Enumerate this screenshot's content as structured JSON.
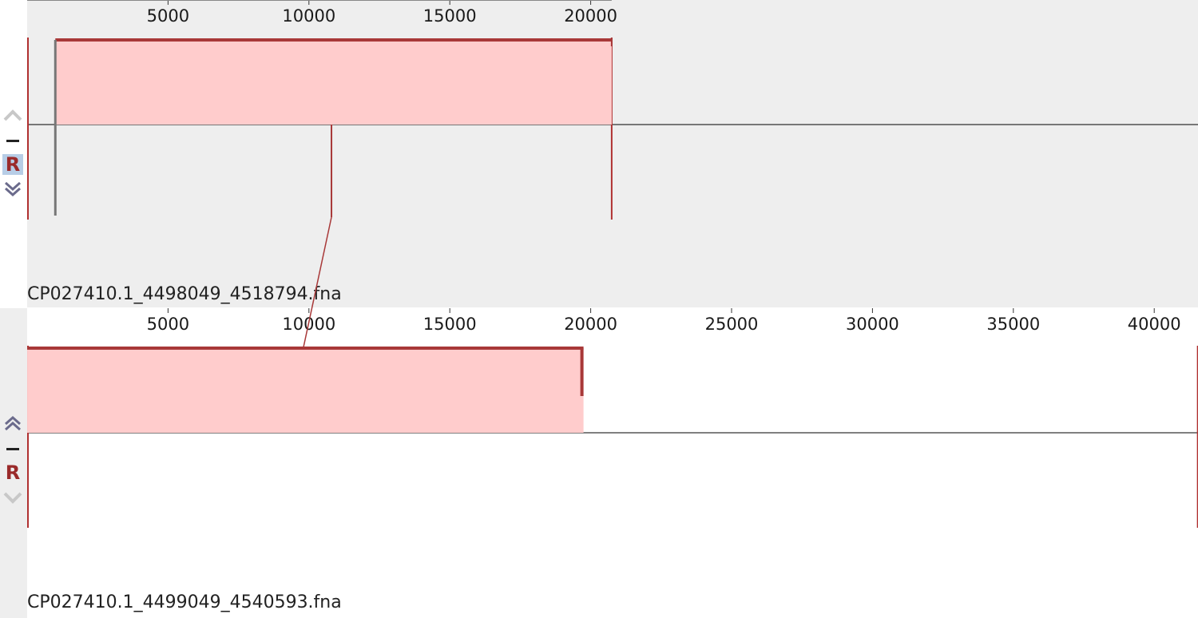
{
  "panels": [
    {
      "id": "top",
      "sequence_name": "CP027410.1_4498049_4518794.fna",
      "length": 20745,
      "ticks": [
        "5000",
        "10000",
        "15000",
        "20000"
      ],
      "reversed_control_label": "R",
      "lcb": {
        "start": 1000,
        "end": 20745,
        "strand": "+",
        "color": "#ffcccc",
        "border": "#a83838"
      }
    },
    {
      "id": "bottom",
      "sequence_name": "CP027410.1_4499049_4540593.fna",
      "length": 41544,
      "ticks": [
        "5000",
        "10000",
        "15000",
        "20000",
        "25000",
        "30000",
        "35000",
        "40000"
      ],
      "reversed_control_label": "R",
      "lcb": {
        "start": 1,
        "end": 19745,
        "strand": "+",
        "color": "#ffcccc",
        "border": "#a83838"
      }
    }
  ],
  "connector": {
    "top_position": 10800,
    "bottom_position": 9800,
    "color": "#a83838"
  },
  "icons": [
    "chevron-up-icon",
    "minus-icon",
    "chevron-down-icon"
  ]
}
